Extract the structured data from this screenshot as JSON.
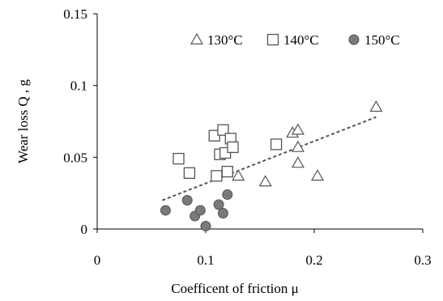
{
  "chart_data": {
    "type": "scatter",
    "xlabel": "Coefficent of friction μ",
    "ylabel": "Wear  loss Q , g",
    "xlim": [
      0,
      0.3
    ],
    "ylim": [
      0,
      0.15
    ],
    "x_ticks": [
      0,
      0.1,
      0.2,
      0.3
    ],
    "x_tick_labels": [
      "0",
      "0.1",
      "0.2",
      "0.3"
    ],
    "y_ticks": [
      0,
      0.05,
      0.1,
      0.15
    ],
    "y_tick_labels": [
      "0",
      "0.05",
      "0.1",
      "0.15"
    ],
    "grid": false,
    "legend_position": "top-right",
    "series": [
      {
        "name": "130°C",
        "marker": "triangle",
        "color": "#ffffff",
        "edge_color": "#555555",
        "points": [
          {
            "x": 0.13,
            "y": 0.037
          },
          {
            "x": 0.155,
            "y": 0.033
          },
          {
            "x": 0.18,
            "y": 0.067
          },
          {
            "x": 0.185,
            "y": 0.069
          },
          {
            "x": 0.185,
            "y": 0.057
          },
          {
            "x": 0.185,
            "y": 0.046
          },
          {
            "x": 0.203,
            "y": 0.037
          },
          {
            "x": 0.257,
            "y": 0.085
          }
        ]
      },
      {
        "name": "140°C",
        "marker": "square",
        "color": "#ffffff",
        "edge_color": "#555555",
        "points": [
          {
            "x": 0.075,
            "y": 0.049
          },
          {
            "x": 0.085,
            "y": 0.039
          },
          {
            "x": 0.108,
            "y": 0.065
          },
          {
            "x": 0.11,
            "y": 0.037
          },
          {
            "x": 0.113,
            "y": 0.052
          },
          {
            "x": 0.116,
            "y": 0.069
          },
          {
            "x": 0.118,
            "y": 0.053
          },
          {
            "x": 0.12,
            "y": 0.04
          },
          {
            "x": 0.123,
            "y": 0.063
          },
          {
            "x": 0.125,
            "y": 0.057
          },
          {
            "x": 0.165,
            "y": 0.059
          }
        ]
      },
      {
        "name": "150°C",
        "marker": "circle",
        "color": "#7a7a7a",
        "edge_color": "#555555",
        "points": [
          {
            "x": 0.063,
            "y": 0.013
          },
          {
            "x": 0.083,
            "y": 0.02
          },
          {
            "x": 0.09,
            "y": 0.009
          },
          {
            "x": 0.095,
            "y": 0.013
          },
          {
            "x": 0.1,
            "y": 0.002
          },
          {
            "x": 0.112,
            "y": 0.017
          },
          {
            "x": 0.116,
            "y": 0.011
          },
          {
            "x": 0.12,
            "y": 0.024
          }
        ]
      }
    ],
    "trendline": {
      "style": "dashed",
      "color": "#555555",
      "points": [
        {
          "x": 0.06,
          "y": 0.02
        },
        {
          "x": 0.257,
          "y": 0.078
        }
      ]
    }
  }
}
